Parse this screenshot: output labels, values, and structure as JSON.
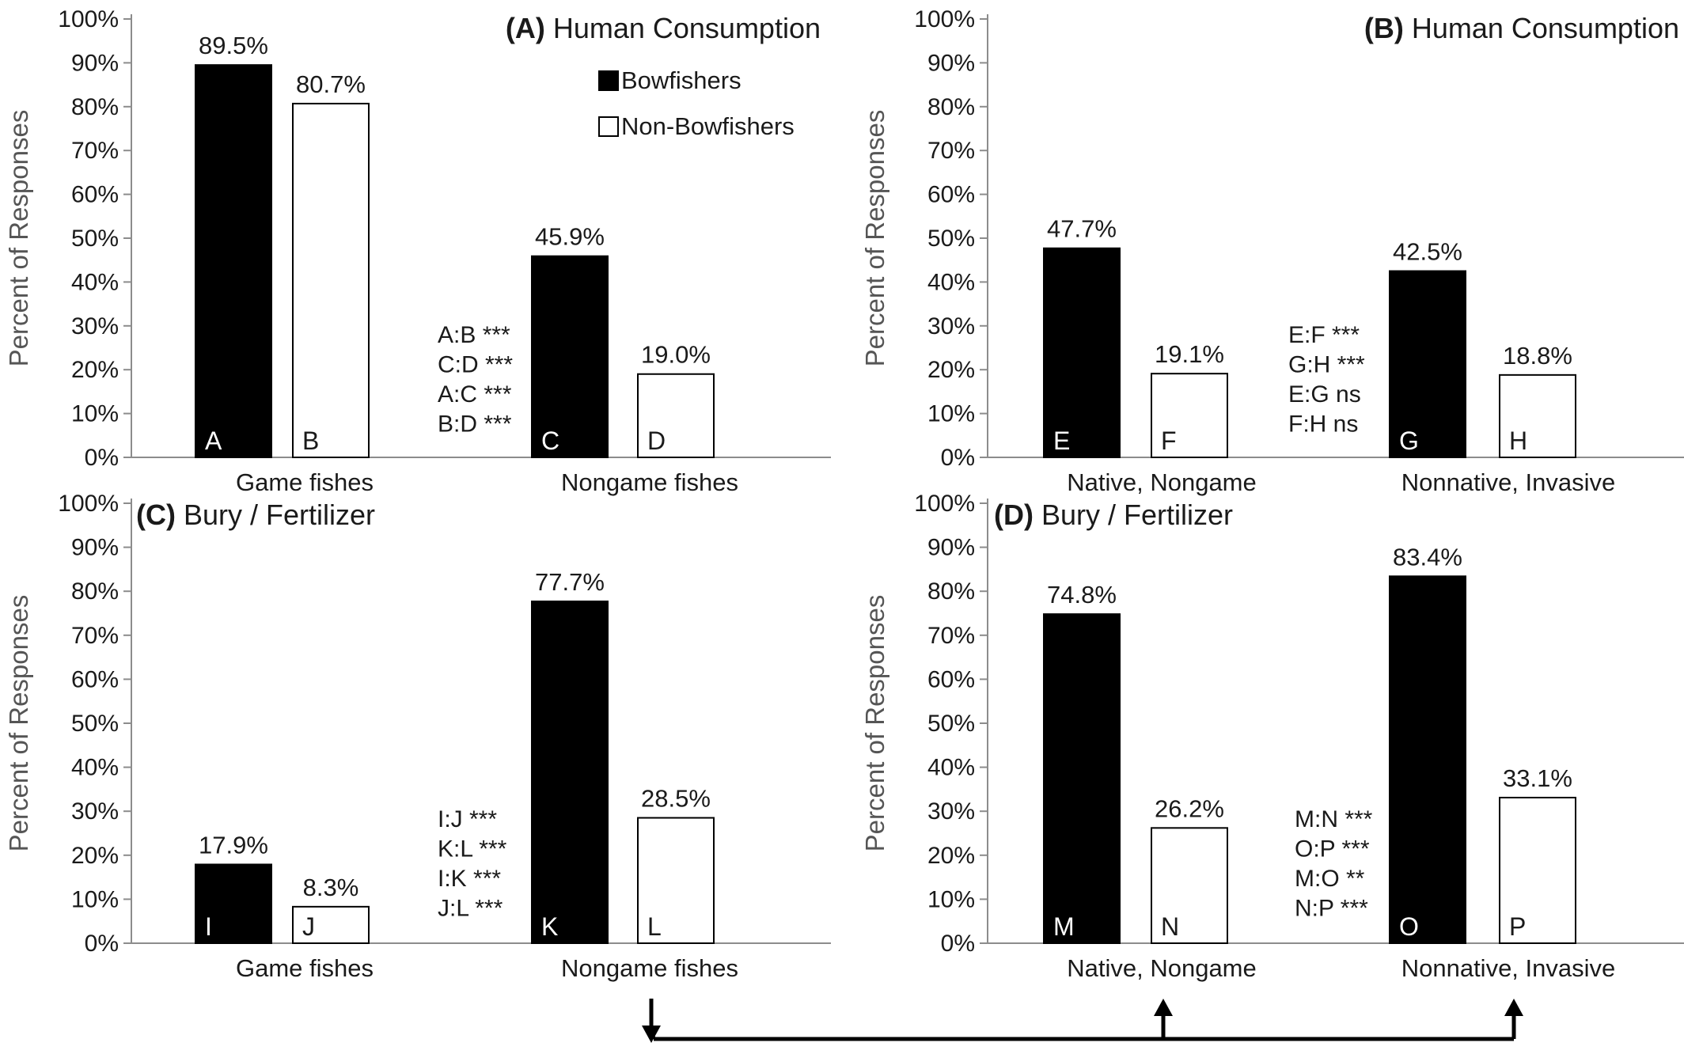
{
  "colors": {
    "bowfishers": "#000000",
    "non_bowfishers": "#ffffff",
    "axis": "#8c8c8c",
    "arrow": "#000000"
  },
  "legend": [
    {
      "name": "Bowfishers",
      "fill": "#000000"
    },
    {
      "name": "Non-Bowfishers",
      "fill": "#ffffff"
    }
  ],
  "chart_data": [
    {
      "type": "bar",
      "panel_tag": "(A)",
      "title": "Human Consumption",
      "ylabel": "Percent of Responses",
      "ylim": [
        0,
        100
      ],
      "yticks": [
        "0%",
        "10%",
        "20%",
        "30%",
        "40%",
        "50%",
        "60%",
        "70%",
        "80%",
        "90%",
        "100%"
      ],
      "categories": [
        "Game fishes",
        "Nongame fishes"
      ],
      "series": [
        {
          "name": "Bowfishers",
          "values": [
            89.5,
            45.9
          ],
          "value_labels": [
            "89.5%",
            "45.9%"
          ],
          "bar_letters": [
            "A",
            "C"
          ]
        },
        {
          "name": "Non-Bowfishers",
          "values": [
            80.7,
            19.0
          ],
          "value_labels": [
            "80.7%",
            "19.0%"
          ],
          "bar_letters": [
            "B",
            "D"
          ]
        }
      ],
      "comparisons": [
        "A:B ***",
        "C:D ***",
        "A:C ***",
        "B:D ***"
      ]
    },
    {
      "type": "bar",
      "panel_tag": "(B)",
      "title": "Human Consumption",
      "ylabel": "Percent of Responses",
      "ylim": [
        0,
        100
      ],
      "yticks": [
        "0%",
        "10%",
        "20%",
        "30%",
        "40%",
        "50%",
        "60%",
        "70%",
        "80%",
        "90%",
        "100%"
      ],
      "categories": [
        "Native, Nongame",
        "Nonnative, Invasive"
      ],
      "series": [
        {
          "name": "Bowfishers",
          "values": [
            47.7,
            42.5
          ],
          "value_labels": [
            "47.7%",
            "42.5%"
          ],
          "bar_letters": [
            "E",
            "G"
          ]
        },
        {
          "name": "Non-Bowfishers",
          "values": [
            19.1,
            18.8
          ],
          "value_labels": [
            "19.1%",
            "18.8%"
          ],
          "bar_letters": [
            "F",
            "H"
          ]
        }
      ],
      "comparisons": [
        "E:F ***",
        "G:H ***",
        "E:G ns",
        "F:H ns"
      ]
    },
    {
      "type": "bar",
      "panel_tag": "(C)",
      "title": "Bury / Fertilizer",
      "ylabel": "Percent of Responses",
      "ylim": [
        0,
        100
      ],
      "yticks": [
        "0%",
        "10%",
        "20%",
        "30%",
        "40%",
        "50%",
        "60%",
        "70%",
        "80%",
        "90%",
        "100%"
      ],
      "categories": [
        "Game fishes",
        "Nongame fishes"
      ],
      "series": [
        {
          "name": "Bowfishers",
          "values": [
            17.9,
            77.7
          ],
          "value_labels": [
            "17.9%",
            "77.7%"
          ],
          "bar_letters": [
            "I",
            "K"
          ]
        },
        {
          "name": "Non-Bowfishers",
          "values": [
            8.3,
            28.5
          ],
          "value_labels": [
            "8.3%",
            "28.5%"
          ],
          "bar_letters": [
            "J",
            "L"
          ]
        }
      ],
      "comparisons": [
        "I:J ***",
        "K:L ***",
        "I:K ***",
        "J:L ***"
      ]
    },
    {
      "type": "bar",
      "panel_tag": "(D)",
      "title": "Bury / Fertilizer",
      "ylabel": "Percent of Responses",
      "ylim": [
        0,
        100
      ],
      "yticks": [
        "0%",
        "10%",
        "20%",
        "30%",
        "40%",
        "50%",
        "60%",
        "70%",
        "80%",
        "90%",
        "100%"
      ],
      "categories": [
        "Native, Nongame",
        "Nonnative, Invasive"
      ],
      "series": [
        {
          "name": "Bowfishers",
          "values": [
            74.8,
            83.4
          ],
          "value_labels": [
            "74.8%",
            "83.4%"
          ],
          "bar_letters": [
            "M",
            "O"
          ]
        },
        {
          "name": "Non-Bowfishers",
          "values": [
            26.2,
            33.1
          ],
          "value_labels": [
            "26.2%",
            "33.1%"
          ],
          "bar_letters": [
            "N",
            "P"
          ]
        }
      ],
      "comparisons": [
        "M:N ***",
        "O:P ***",
        "M:O **",
        "N:P ***"
      ]
    }
  ]
}
